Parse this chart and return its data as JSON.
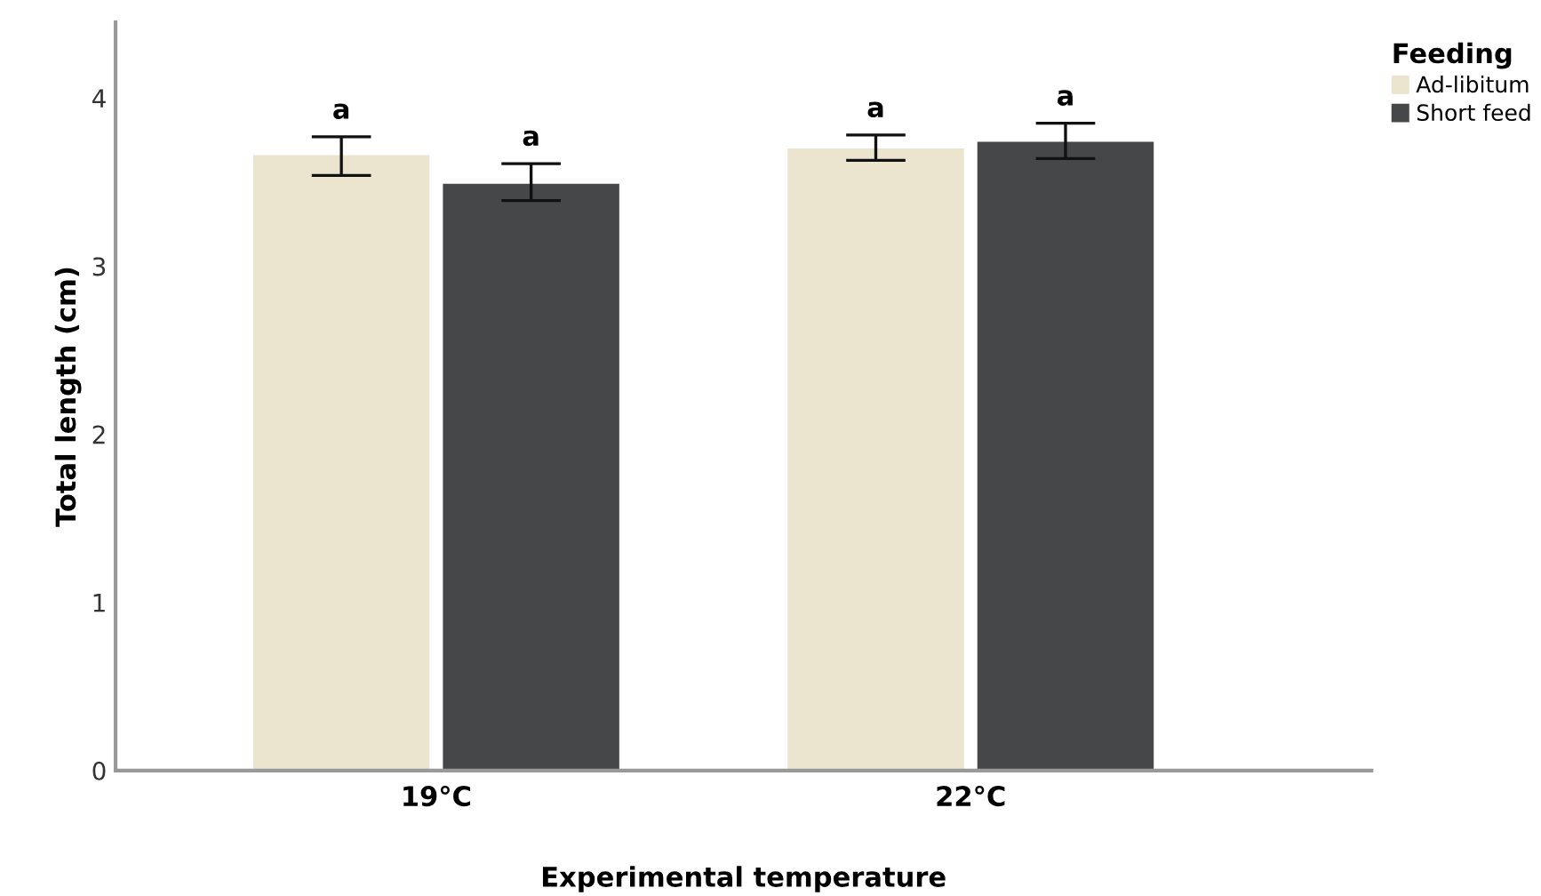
{
  "chart_data": {
    "type": "bar",
    "xlabel": "Experimental temperature",
    "ylabel": "Total length (cm)",
    "legend_title": "Feeding",
    "legend": "top right",
    "categories": [
      "19°C",
      "22°C"
    ],
    "series": [
      {
        "name": "Ad-libitum",
        "color": "#ebe4cf",
        "values": [
          3.66,
          3.7
        ],
        "errors": [
          [
            3.54,
            3.77
          ],
          [
            3.63,
            3.78
          ]
        ],
        "value_labels": [
          "a",
          "a"
        ]
      },
      {
        "name": "Short feed",
        "color": "#464749",
        "values": [
          3.49,
          3.74
        ],
        "errors": [
          [
            3.39,
            3.61
          ],
          [
            3.64,
            3.85
          ]
        ],
        "value_labels": [
          "a",
          "a"
        ]
      }
    ],
    "ylim": [
      0,
      4.45
    ],
    "yticks": [
      0,
      1,
      2,
      3,
      4
    ],
    "grid": false
  }
}
